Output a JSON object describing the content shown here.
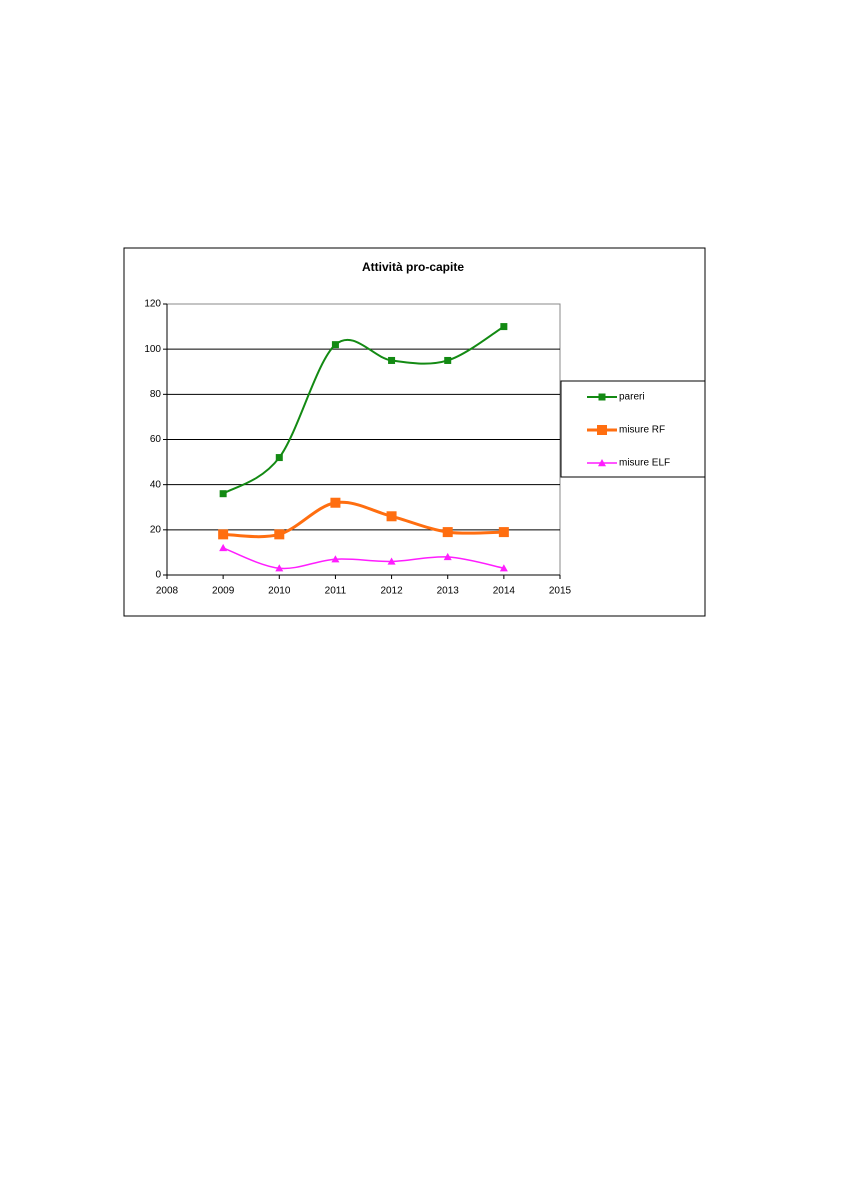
{
  "chart_data": {
    "type": "line",
    "title": "Attività pro-capite",
    "x": [
      2009,
      2010,
      2011,
      2012,
      2013,
      2014
    ],
    "series": [
      {
        "name": "pareri",
        "color": "#138a13",
        "marker": "square",
        "values": [
          36,
          52,
          102,
          95,
          95,
          110
        ]
      },
      {
        "name": "misure RF",
        "color": "#ff6e10",
        "marker": "square",
        "values": [
          18,
          18,
          32,
          26,
          19,
          19
        ]
      },
      {
        "name": "misure ELF",
        "color": "#ff1dff",
        "marker": "triangle",
        "values": [
          12,
          3,
          7,
          6,
          8,
          3
        ]
      }
    ],
    "xlim": [
      2008,
      2015
    ],
    "xticks": [
      2008,
      2009,
      2010,
      2011,
      2012,
      2013,
      2014,
      2015
    ],
    "ylim": [
      0,
      120
    ],
    "yticks": [
      0,
      20,
      40,
      60,
      80,
      100,
      120
    ],
    "grid": true,
    "legend": "right",
    "smooth": true
  }
}
